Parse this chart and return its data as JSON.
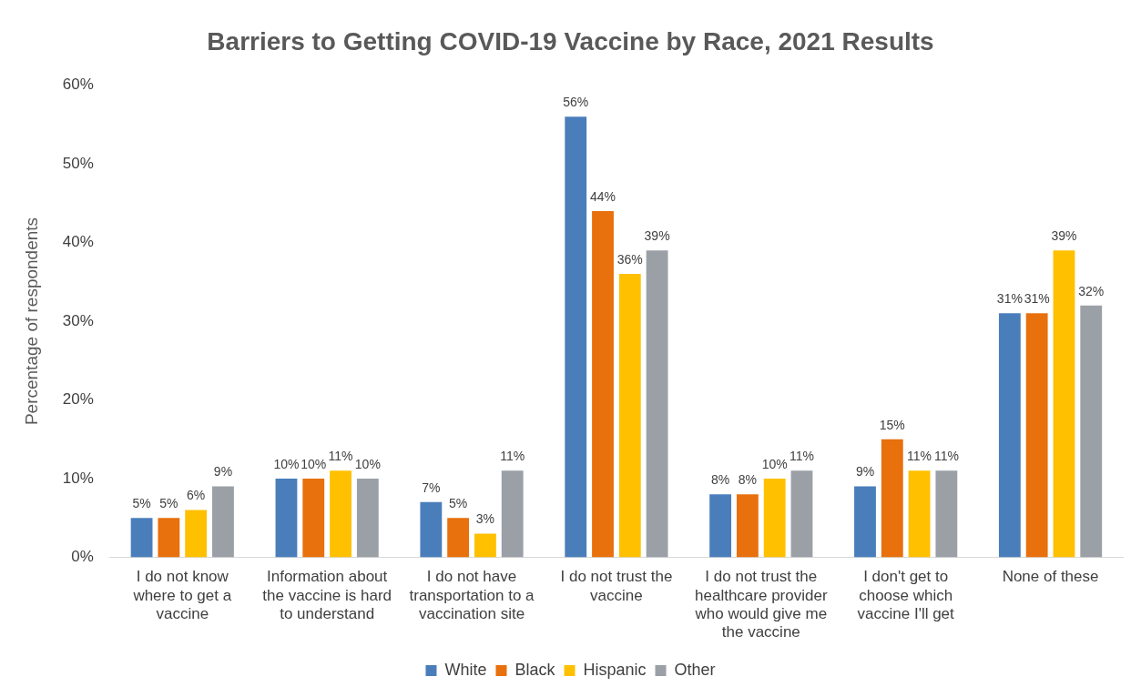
{
  "chart_data": {
    "type": "bar",
    "title": "Barriers to Getting COVID-19 Vaccine by Race, 2021 Results",
    "ylabel": "Percentage of respondents",
    "categories": [
      "I do not know where to get a vaccine",
      "Information about the vaccine is hard to understand",
      "I do not have transportation to a vaccination site",
      "I do not trust the vaccine",
      "I do not trust the healthcare provider who would give me the vaccine",
      "I don't get to choose which vaccine I'll get",
      "None of these"
    ],
    "series": [
      {
        "name": "White",
        "color": "#4a7ebb",
        "values": [
          5,
          10,
          7,
          56,
          8,
          9,
          31
        ],
        "value_labels": [
          "5%",
          "10%",
          "7%",
          "56%",
          "8%",
          "9%",
          "31%"
        ]
      },
      {
        "name": "Black",
        "color": "#e8700d",
        "values": [
          5,
          10,
          5,
          44,
          8,
          15,
          31
        ],
        "value_labels": [
          "5%",
          "10%",
          "5%",
          "44%",
          "8%",
          "15%",
          "31%"
        ]
      },
      {
        "name": "Hispanic",
        "color": "#ffc000",
        "values": [
          6,
          11,
          3,
          36,
          10,
          11,
          39
        ],
        "value_labels": [
          "6%",
          "11%",
          "3%",
          "36%",
          "10%",
          "11%",
          "39%"
        ]
      },
      {
        "name": "Other",
        "color": "#9aa0a6",
        "values": [
          9,
          10,
          11,
          39,
          11,
          11,
          32
        ],
        "value_labels": [
          "9%",
          "10%",
          "11%",
          "39%",
          "11%",
          "11%",
          "32%"
        ]
      }
    ],
    "ylim": [
      0,
      60
    ],
    "yticks": [
      {
        "value": 0,
        "label": "0%"
      },
      {
        "value": 10,
        "label": "10%"
      },
      {
        "value": 20,
        "label": "20%"
      },
      {
        "value": 30,
        "label": "30%"
      },
      {
        "value": 40,
        "label": "40%"
      },
      {
        "value": 50,
        "label": "50%"
      },
      {
        "value": 60,
        "label": "60%"
      }
    ],
    "grid": false,
    "legend": "bottom"
  }
}
